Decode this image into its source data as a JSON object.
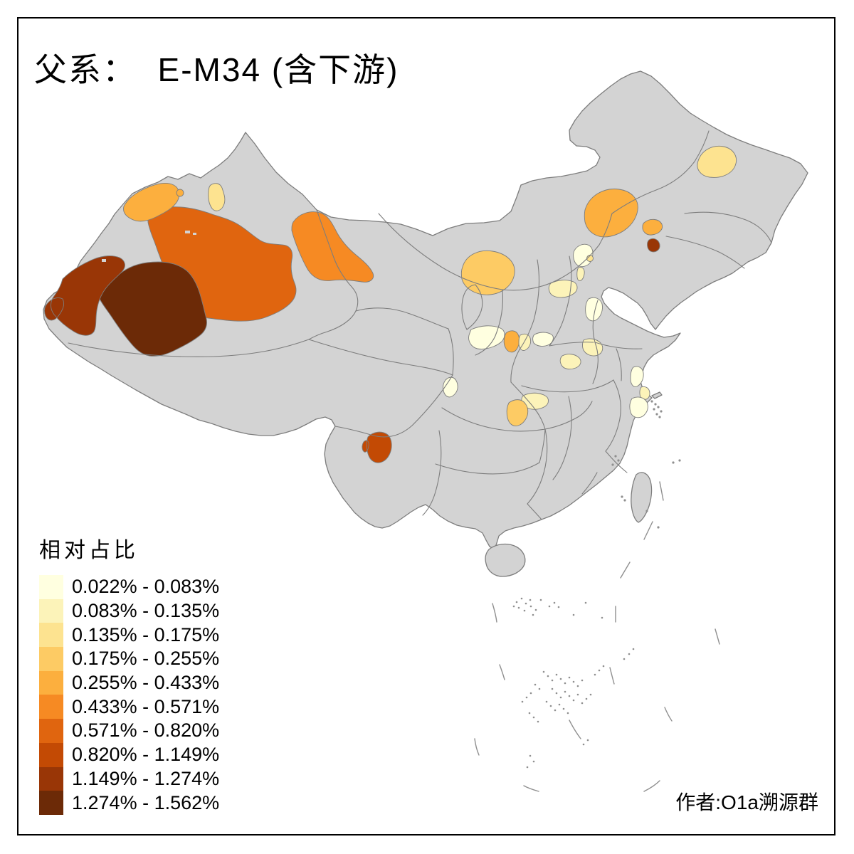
{
  "title": "父系：  E-M34 (含下游)",
  "attribution": "作者:O1a溯源群",
  "legend": {
    "title": "相对占比",
    "classes": [
      {
        "label": "0.022% - 0.083%",
        "color": "#FFFFE0"
      },
      {
        "label": "0.083% - 0.135%",
        "color": "#FCF3B9"
      },
      {
        "label": "0.135% - 0.175%",
        "color": "#FDE390"
      },
      {
        "label": "0.175% - 0.255%",
        "color": "#FDCB64"
      },
      {
        "label": "0.255% - 0.433%",
        "color": "#FCAF3E"
      },
      {
        "label": "0.433% - 0.571%",
        "color": "#F68A23"
      },
      {
        "label": "0.571% - 0.820%",
        "color": "#E0650F"
      },
      {
        "label": "0.820% - 1.149%",
        "color": "#C34A04"
      },
      {
        "label": "1.149% - 1.274%",
        "color": "#993606"
      },
      {
        "label": "1.274% - 1.562%",
        "color": "#6C2A07"
      }
    ]
  },
  "map": {
    "base_fill": "#D3D3D3",
    "border_color": "#7D7D7D",
    "background": "#FFFFFF",
    "regions": [
      {
        "name": "xinjiang-ili-band",
        "class_index": 4,
        "range": "0.255% - 0.433%"
      },
      {
        "name": "xinjiang-wusu-dot",
        "class_index": 4,
        "range": "0.255% - 0.433%"
      },
      {
        "name": "xinjiang-bortala-strip",
        "class_index": 2,
        "range": "0.135% - 0.175%"
      },
      {
        "name": "xinjiang-aksu-bayingol",
        "class_index": 6,
        "range": "0.571% - 0.820%"
      },
      {
        "name": "xinjiang-hami-gansu-jiuquan",
        "class_index": 5,
        "range": "0.433% - 0.571%"
      },
      {
        "name": "xinjiang-hotan",
        "class_index": 9,
        "range": "1.274% - 1.562%"
      },
      {
        "name": "xinjiang-kashgar",
        "class_index": 8,
        "range": "1.149% - 1.274%"
      },
      {
        "name": "inner-mongolia-alxa",
        "class_index": 3,
        "range": "0.175% - 0.255%"
      },
      {
        "name": "inner-mongolia-chifeng",
        "class_index": 4,
        "range": "0.255% - 0.433%"
      },
      {
        "name": "liaoning-chaoyang",
        "class_index": 4,
        "range": "0.255% - 0.433%"
      },
      {
        "name": "liaoning-jinzhou",
        "class_index": 8,
        "range": "1.149% - 1.274%"
      },
      {
        "name": "heilongjiang-suihua",
        "class_index": 2,
        "range": "0.135% - 0.175%"
      },
      {
        "name": "beijing",
        "class_index": 0,
        "range": "0.022% - 0.083%"
      },
      {
        "name": "beijing-east-dot",
        "class_index": 2,
        "range": "0.135% - 0.175%"
      },
      {
        "name": "tianjin-north",
        "class_index": 1,
        "range": "0.083% - 0.135%"
      },
      {
        "name": "hebei-baoding",
        "class_index": 1,
        "range": "0.083% - 0.135%"
      },
      {
        "name": "shandong-west",
        "class_index": 0,
        "range": "0.022% - 0.083%"
      },
      {
        "name": "gansu-pingliang-baoji",
        "class_index": 0,
        "range": "0.022% - 0.083%"
      },
      {
        "name": "shaanxi-weinan",
        "class_index": 4,
        "range": "0.255% - 0.433%"
      },
      {
        "name": "henan-sanmenxia",
        "class_index": 1,
        "range": "0.083% - 0.135%"
      },
      {
        "name": "henan-luoyang-zhengzhou",
        "class_index": 0,
        "range": "0.022% - 0.083%"
      },
      {
        "name": "henan-pingdingshan",
        "class_index": 1,
        "range": "0.083% - 0.135%"
      },
      {
        "name": "anhui-huaibei",
        "class_index": 1,
        "range": "0.083% - 0.135%"
      },
      {
        "name": "jiangsu-yancheng",
        "class_index": 0,
        "range": "0.022% - 0.083%"
      },
      {
        "name": "jiangsu-nantong",
        "class_index": 1,
        "range": "0.083% - 0.135%"
      },
      {
        "name": "zhejiang-hangzhou",
        "class_index": 0,
        "range": "0.022% - 0.083%"
      },
      {
        "name": "sichuan-mianyang",
        "class_index": 0,
        "range": "0.022% - 0.083%"
      },
      {
        "name": "hubei-enshi",
        "class_index": 3,
        "range": "0.175% - 0.255%"
      },
      {
        "name": "hubei-yichang",
        "class_index": 1,
        "range": "0.083% - 0.135%"
      },
      {
        "name": "yunnan-dali",
        "class_index": 7,
        "range": "0.820% - 1.149%"
      }
    ]
  }
}
